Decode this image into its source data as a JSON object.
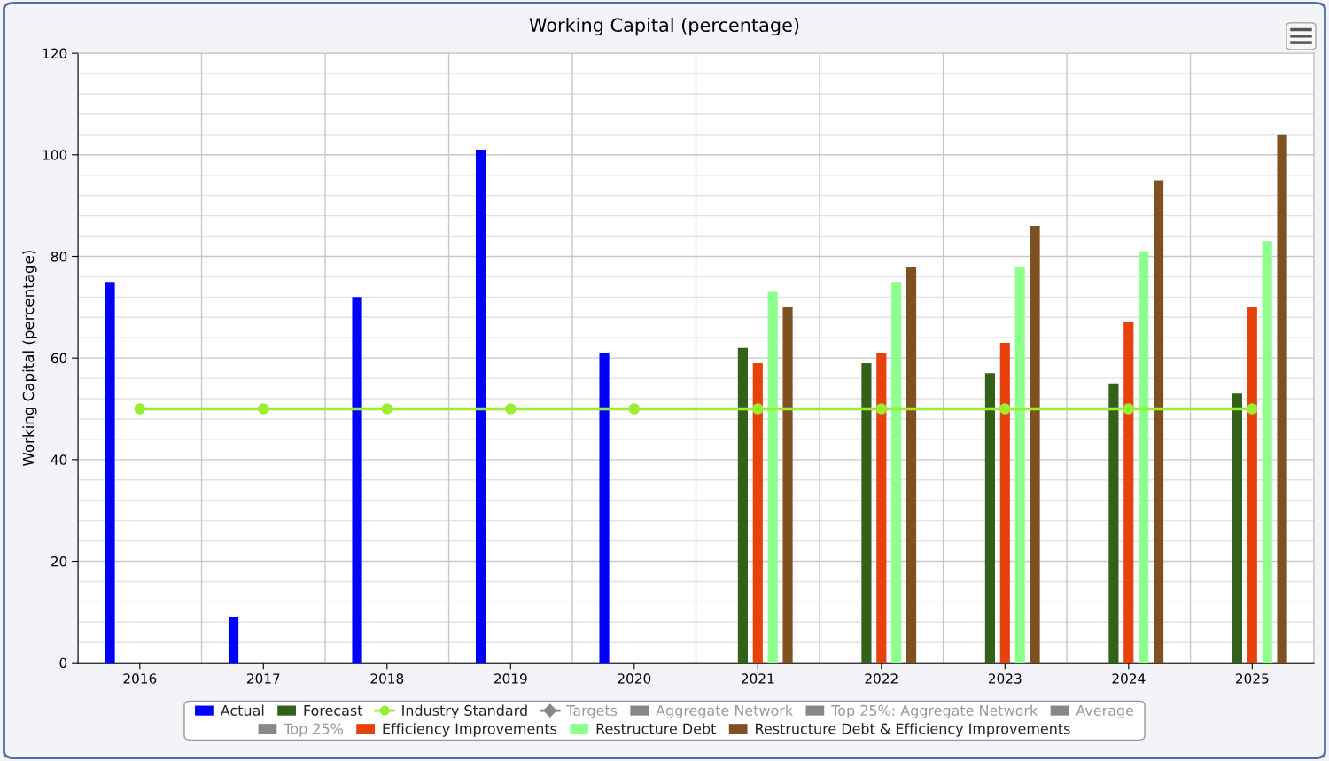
{
  "chart_data": {
    "type": "bar",
    "title": "Working Capital (percentage)",
    "ylabel": "Working Capital (percentage)",
    "categories": [
      "2016",
      "2017",
      "2018",
      "2019",
      "2020",
      "2021",
      "2022",
      "2023",
      "2024",
      "2025"
    ],
    "series": [
      {
        "name": "Actual",
        "color": "#0000ff",
        "values": [
          75,
          9,
          72,
          101,
          61,
          null,
          null,
          null,
          null,
          null
        ]
      },
      {
        "name": "Forecast",
        "color": "#336119",
        "values": [
          null,
          null,
          null,
          null,
          null,
          62,
          59,
          57,
          55,
          53
        ]
      },
      {
        "name": "Industry Standard",
        "type": "line",
        "color": "#99ee33",
        "marker": "circle",
        "values": [
          50,
          50,
          50,
          50,
          50,
          50,
          50,
          50,
          50,
          50
        ]
      },
      {
        "name": "Targets",
        "type": "line",
        "color": "#808080",
        "marker": "diamond",
        "values": [
          null,
          null,
          null,
          null,
          null,
          null,
          null,
          null,
          null,
          null
        ]
      },
      {
        "name": "Aggregate Network",
        "color": "#808080",
        "values": [
          null,
          null,
          null,
          null,
          null,
          null,
          null,
          null,
          null,
          null
        ]
      },
      {
        "name": "Top 25%: Aggregate Network",
        "color": "#808080",
        "values": [
          null,
          null,
          null,
          null,
          null,
          null,
          null,
          null,
          null,
          null
        ]
      },
      {
        "name": "Average",
        "color": "#808080",
        "values": [
          null,
          null,
          null,
          null,
          null,
          null,
          null,
          null,
          null,
          null
        ]
      },
      {
        "name": "Top 25%",
        "color": "#808080",
        "values": [
          null,
          null,
          null,
          null,
          null,
          null,
          null,
          null,
          null,
          null
        ]
      },
      {
        "name": "Efficiency Improvements",
        "color": "#e8410c",
        "values": [
          null,
          null,
          null,
          null,
          null,
          59,
          61,
          63,
          67,
          70
        ]
      },
      {
        "name": "Restructure Debt",
        "color": "#8cff8c",
        "values": [
          null,
          null,
          null,
          null,
          null,
          73,
          75,
          78,
          81,
          83
        ]
      },
      {
        "name": "Restructure Debt & Efficiency Improvements",
        "color": "#7f5120",
        "values": [
          null,
          null,
          null,
          null,
          null,
          70,
          78,
          86,
          95,
          104
        ]
      }
    ],
    "ylim": [
      0,
      120
    ],
    "yticks": [
      0,
      20,
      40,
      60,
      80,
      100,
      120
    ],
    "grid": true,
    "legend": "bottom"
  }
}
